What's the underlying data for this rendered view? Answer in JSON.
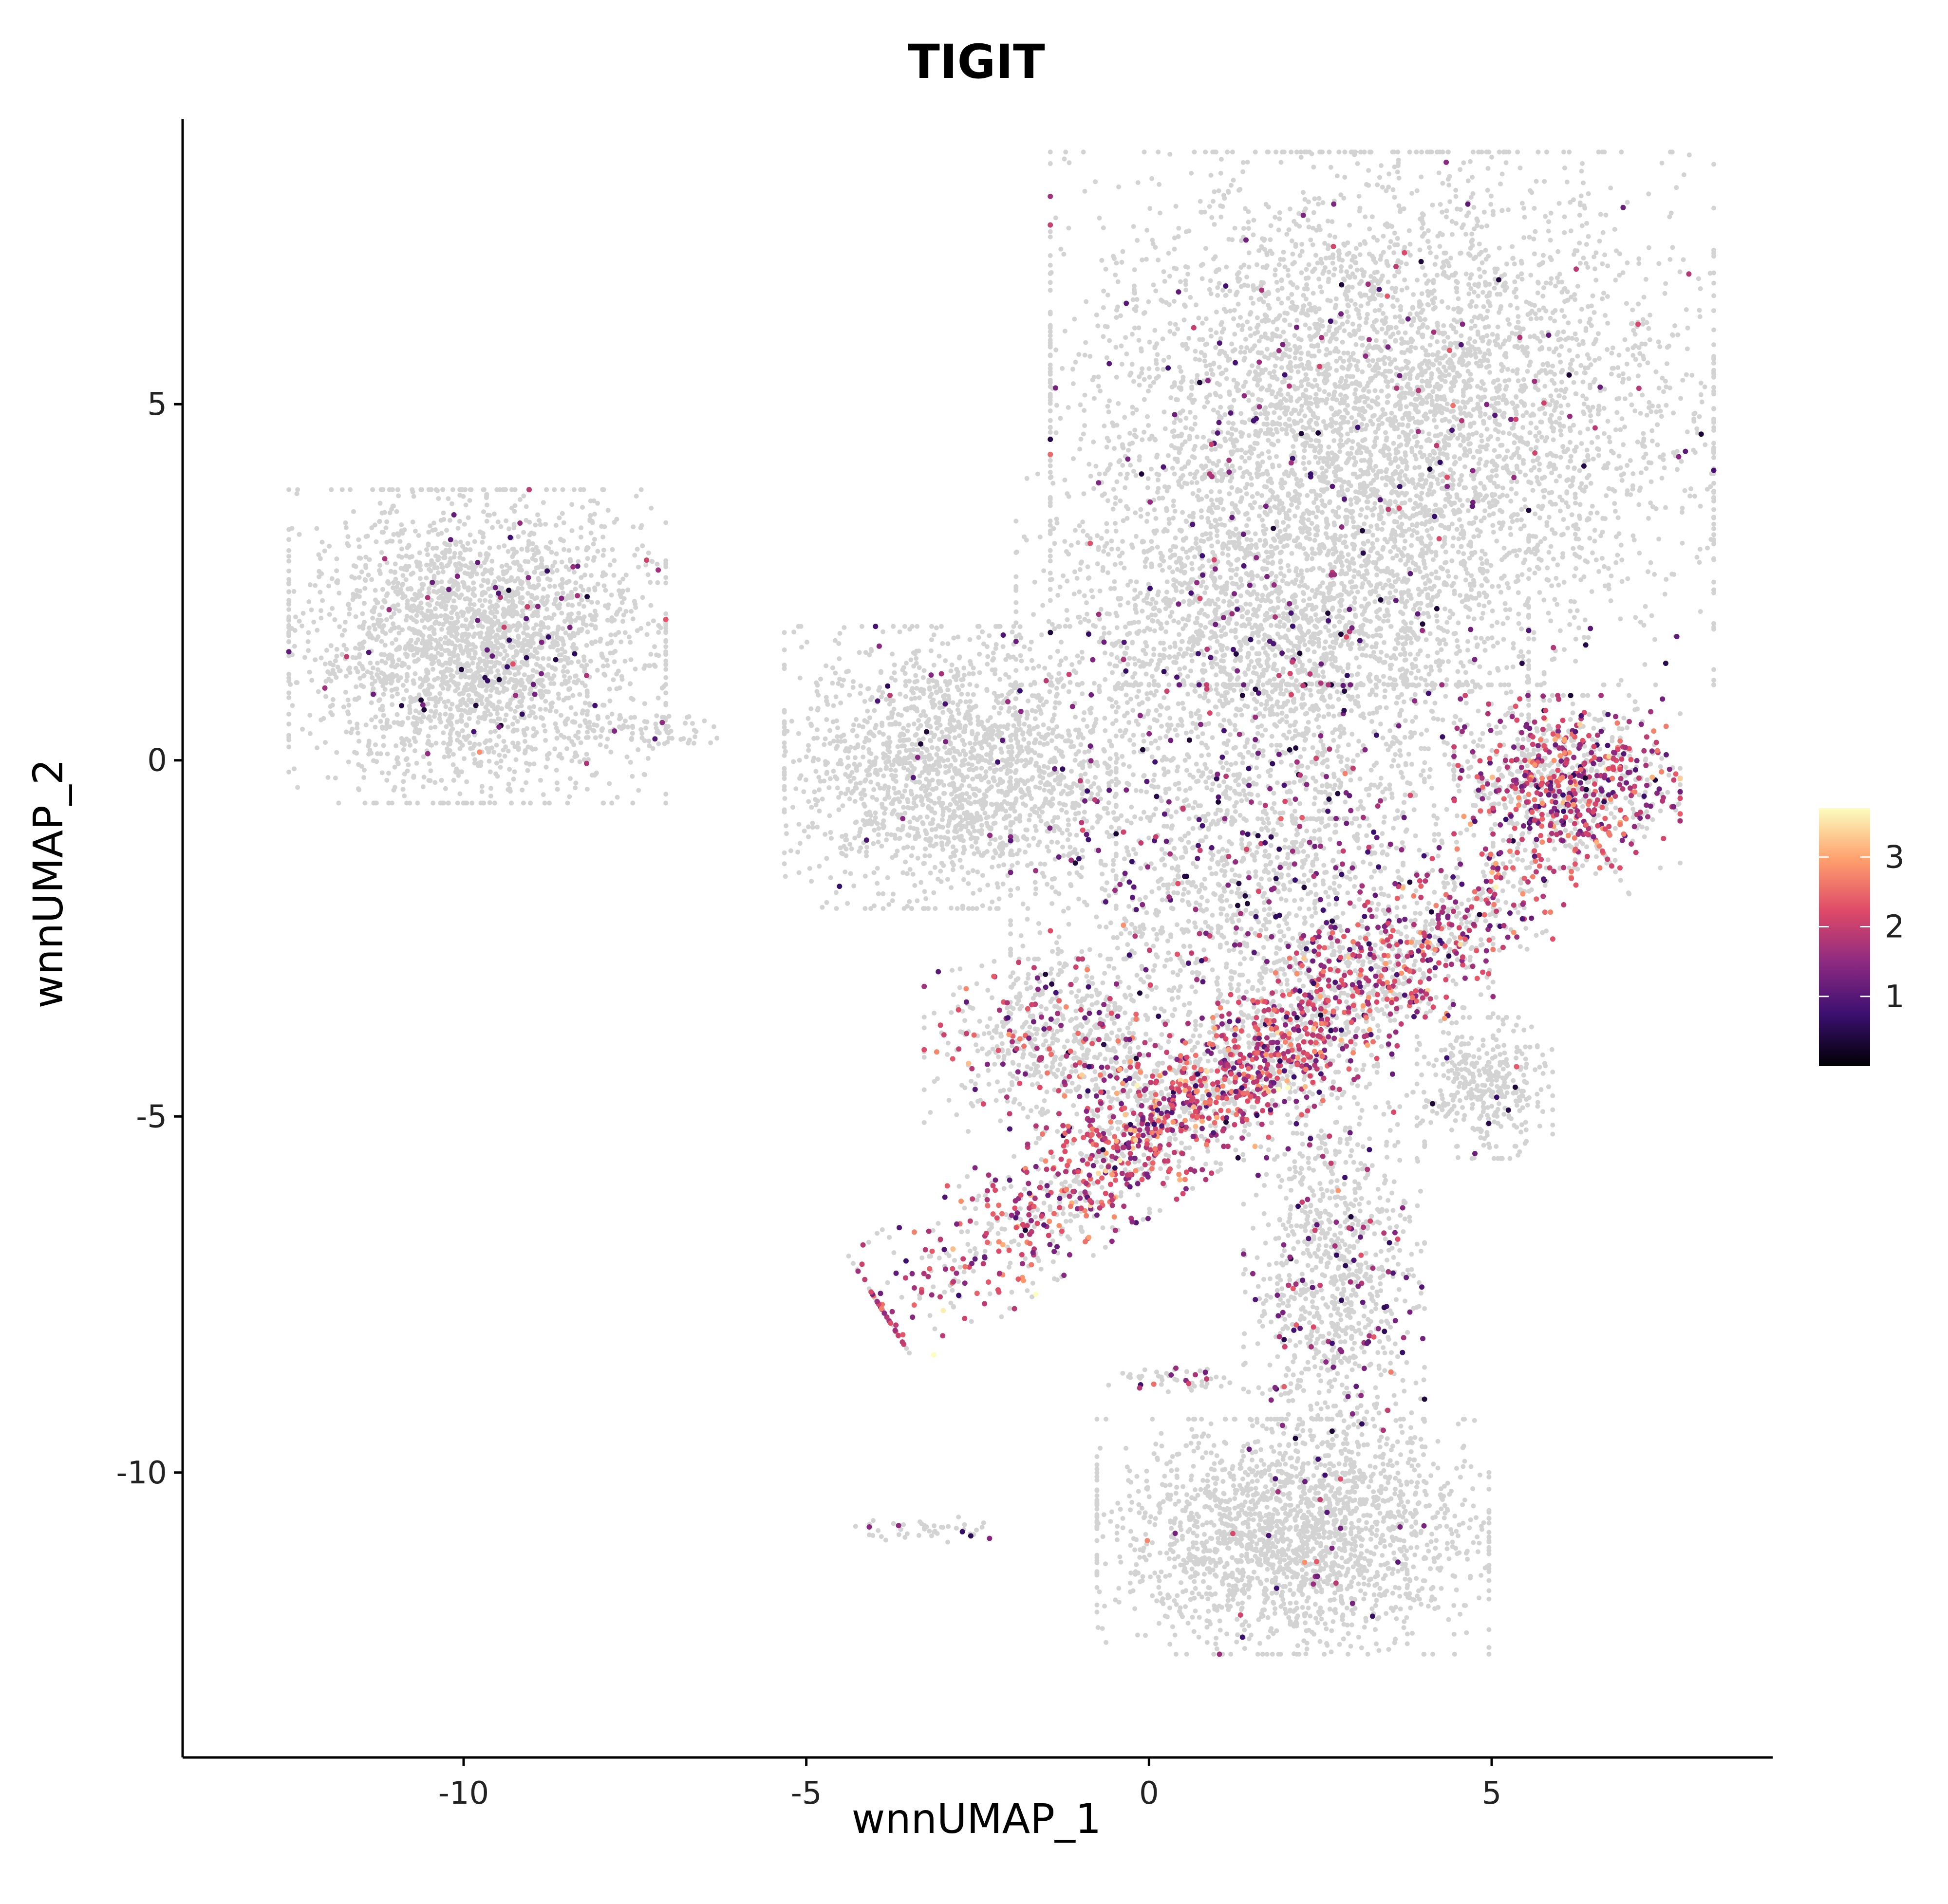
{
  "chart_data": {
    "type": "scatter",
    "title": "TIGIT",
    "xlabel": "wnnUMAP_1",
    "ylabel": "wnnUMAP_2",
    "xlim": [
      -14.1,
      9.1
    ],
    "ylim": [
      -14.0,
      9.0
    ],
    "xticks": [
      -10,
      -5,
      0,
      5
    ],
    "xtick_labels": [
      "-10",
      "-5",
      "0",
      "5"
    ],
    "yticks": [
      5,
      0,
      -5,
      -10
    ],
    "ytick_labels": [
      "5",
      "0",
      "-5",
      "-10"
    ],
    "grid": false,
    "legend": {
      "position": "right",
      "type": "colorbar",
      "range": [
        0,
        3.7
      ],
      "ticks": [
        1,
        2,
        3
      ],
      "tick_labels": [
        "1",
        "2",
        "3"
      ],
      "colormap": "magma",
      "stops": [
        "#000004",
        "#3b0f70",
        "#8c2981",
        "#de4968",
        "#fe9f6d",
        "#fcfdbf"
      ]
    },
    "background_color": "#d3d3d3",
    "clusters": [
      {
        "id": "left-island",
        "center": [
          -9.8,
          1.6
        ],
        "spread": [
          1.25,
          1.0
        ],
        "n_background": 2600,
        "n_expressing": 70,
        "mean_expr": 1.1
      },
      {
        "id": "left-tail",
        "center": [
          -7.3,
          0.4
        ],
        "spread": [
          0.5,
          0.12
        ],
        "n_background": 60,
        "n_expressing": 2,
        "mean_expr": 1.2
      },
      {
        "id": "mid-left-blob",
        "center": [
          -2.9,
          -0.1
        ],
        "spread": [
          1.1,
          0.9
        ],
        "n_background": 1800,
        "n_expressing": 30,
        "mean_expr": 1.1
      },
      {
        "id": "top-large-cluster",
        "center": [
          3.4,
          4.8
        ],
        "spread": [
          2.2,
          1.7
        ],
        "n_background": 5000,
        "n_expressing": 140,
        "mean_expr": 1.3
      },
      {
        "id": "upper-middle",
        "center": [
          1.8,
          1.6
        ],
        "spread": [
          1.7,
          1.1
        ],
        "n_background": 2000,
        "n_expressing": 110,
        "mean_expr": 1.2
      },
      {
        "id": "right-hotspot",
        "center": [
          6.1,
          -0.3
        ],
        "spread": [
          0.75,
          0.55
        ],
        "n_background": 650,
        "n_expressing": 430,
        "mean_expr": 1.9
      },
      {
        "id": "center-mid",
        "center": [
          1.5,
          -1.8
        ],
        "spread": [
          1.6,
          1.3
        ],
        "n_background": 1600,
        "n_expressing": 260,
        "mean_expr": 1.3
      },
      {
        "id": "diagonal-band",
        "center": [
          1.3,
          -4.4
        ],
        "spread": [
          2.8,
          0.45
        ],
        "angle_deg": 33,
        "n_background": 1300,
        "n_expressing": 1250,
        "mean_expr": 2.0
      },
      {
        "id": "lower-left-arm",
        "center": [
          -1.3,
          -4.0
        ],
        "spread": [
          0.9,
          0.55
        ],
        "n_background": 500,
        "n_expressing": 130,
        "mean_expr": 1.9
      },
      {
        "id": "right-small-blob",
        "center": [
          4.9,
          -4.6
        ],
        "spread": [
          0.45,
          0.45
        ],
        "n_background": 350,
        "n_expressing": 8,
        "mean_expr": 1.0
      },
      {
        "id": "lower-column",
        "center": [
          2.7,
          -7.3
        ],
        "spread": [
          0.6,
          1.4
        ],
        "n_background": 900,
        "n_expressing": 120,
        "mean_expr": 1.4
      },
      {
        "id": "bottom-cluster",
        "center": [
          2.1,
          -10.9
        ],
        "spread": [
          1.3,
          0.75
        ],
        "n_background": 2000,
        "n_expressing": 25,
        "mean_expr": 1.3
      },
      {
        "id": "bottom-left-streak",
        "center": [
          -3.2,
          -10.8
        ],
        "spread": [
          0.5,
          0.08
        ],
        "n_background": 40,
        "n_expressing": 5,
        "mean_expr": 1.0
      },
      {
        "id": "diag-streak",
        "center": [
          0.5,
          -8.7
        ],
        "spread": [
          0.5,
          0.08
        ],
        "n_background": 40,
        "n_expressing": 10,
        "mean_expr": 1.6
      }
    ]
  }
}
